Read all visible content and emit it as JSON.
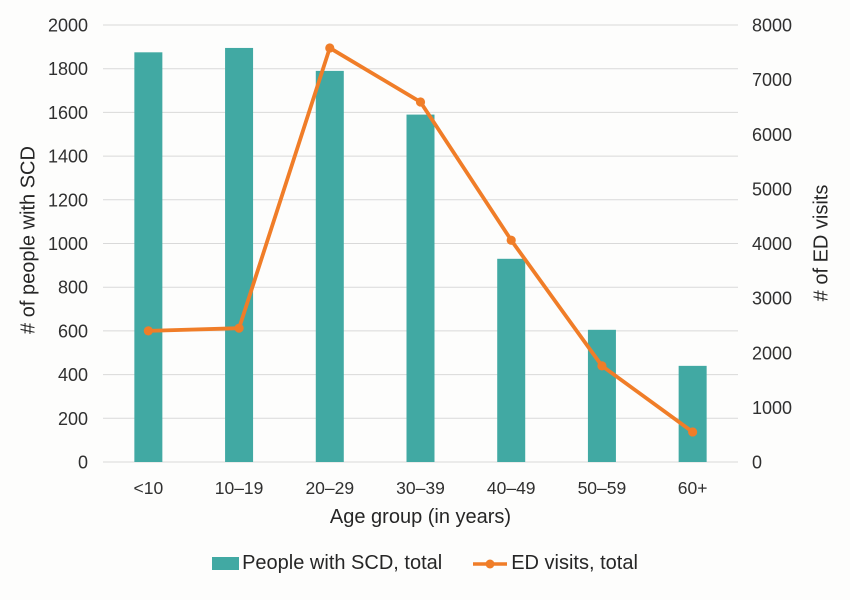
{
  "chart_data": {
    "type": "bar",
    "subtype": "combo-bar-line-two-axes",
    "categories": [
      "<10",
      "10–19",
      "20–29",
      "30–39",
      "40–49",
      "50–59",
      "60+"
    ],
    "series": [
      {
        "name": "People with SCD, total",
        "type": "bar",
        "axis": "left",
        "values": [
          1875,
          1895,
          1790,
          1590,
          930,
          605,
          440
        ]
      },
      {
        "name": "ED visits, total",
        "type": "line",
        "axis": "right",
        "values": [
          2400,
          2450,
          7580,
          6590,
          4060,
          1760,
          550
        ]
      }
    ],
    "x_axis": {
      "title": "Age group (in years)"
    },
    "left_axis": {
      "title": "# of people with SCD",
      "min": 0,
      "max": 2000,
      "step": 200
    },
    "right_axis": {
      "title": "# of ED visits",
      "min": 0,
      "max": 8000,
      "step": 1000
    },
    "grid": true,
    "legend_position": "bottom",
    "title": ""
  },
  "colors": {
    "bar": "#41A9A3",
    "line": "#F07D28",
    "grid": "#D9D9D9",
    "text": "#303030",
    "background": "#FDFDFC"
  }
}
